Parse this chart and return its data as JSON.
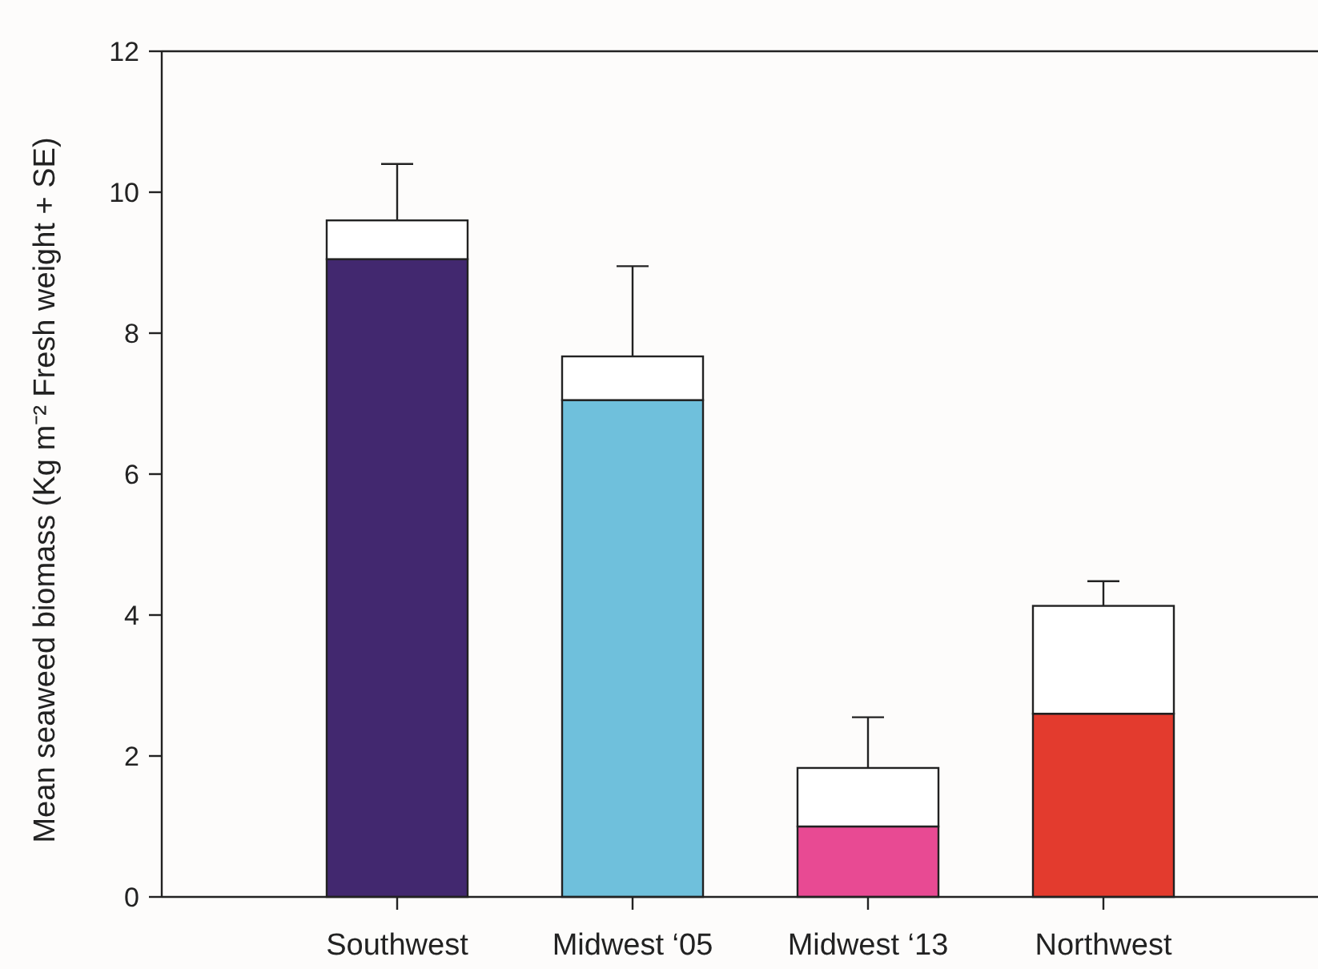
{
  "chart_data": {
    "type": "bar",
    "stacked": true,
    "ylabel": "Mean seaweed biomass (Kg m⁻² Fresh weight + SE)",
    "categories": [
      "Southwest",
      "Midwest ‘05",
      "Midwest ‘13",
      "Northwest"
    ],
    "series": [
      {
        "colors": [
          "#42286f",
          "#6fc0dc",
          "#e84a93",
          "#e33b2e"
        ],
        "values": [
          9.05,
          7.05,
          1.0,
          2.6
        ]
      },
      {
        "color": "#ffffff",
        "values": [
          0.55,
          0.62,
          0.83,
          1.53
        ],
        "errors": [
          [
            9.6,
            10.4
          ],
          [
            7.67,
            8.95
          ],
          [
            1.83,
            2.55
          ],
          [
            4.13,
            4.48
          ]
        ]
      }
    ],
    "ylim": [
      0,
      12
    ],
    "yticks": [
      0,
      2,
      4,
      6,
      8,
      10,
      12
    ],
    "grid": false
  }
}
